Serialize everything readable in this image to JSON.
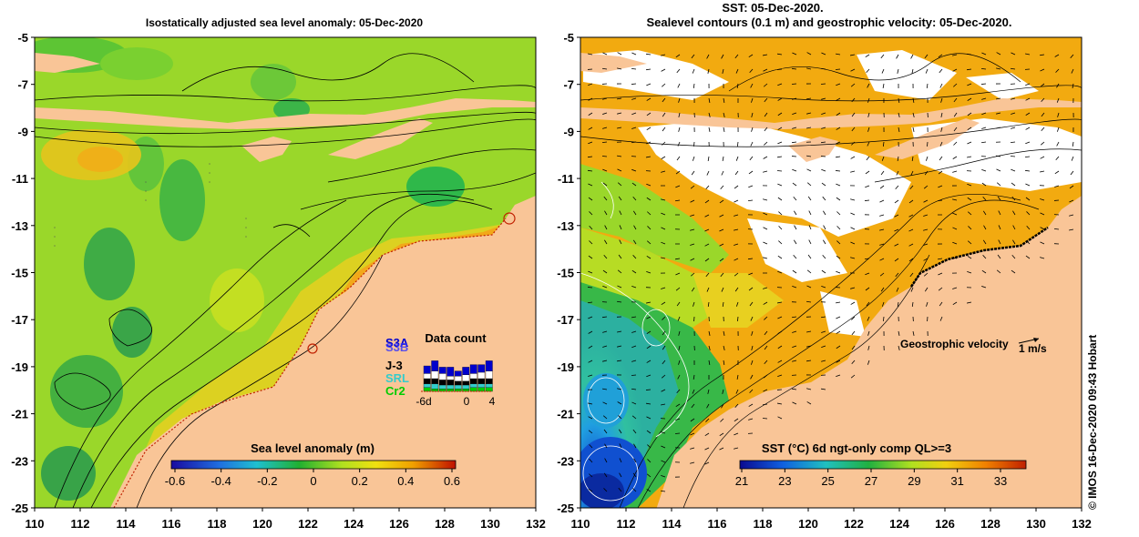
{
  "left_panel": {
    "title": "Isostatically adjusted sea level anomaly: 05-Dec-2020",
    "colorbar_label": "Sea level anomaly (m)",
    "colorbar_ticks": [
      "-0.6",
      "-0.4",
      "-0.2",
      "0",
      "0.2",
      "0.4",
      "0.6"
    ],
    "data_count": {
      "title": "Data count",
      "satellites": [
        "S3A",
        "S3B",
        "J-3",
        "SRL",
        "Cr2"
      ],
      "satellite_colors": [
        "#0000cc",
        "#3333ff",
        "#000000",
        "#33cccc",
        "#00cc00"
      ],
      "x_ticks": [
        "-6d",
        "0",
        "4"
      ]
    }
  },
  "right_panel": {
    "title_line1": "SST: 05-Dec-2020.",
    "title_line2": "Sealevel contours (0.1 m) and geostrophic velocity: 05-Dec-2020.",
    "colorbar_label": "SST (°C) 6d ngt-only comp QL>=3",
    "colorbar_ticks": [
      "21",
      "23",
      "25",
      "27",
      "29",
      "31",
      "33"
    ],
    "velocity_label": "Geostrophic velocity",
    "velocity_scale": "1 m/s"
  },
  "axes": {
    "x_ticks": [
      "110",
      "112",
      "114",
      "116",
      "118",
      "120",
      "122",
      "124",
      "126",
      "128",
      "130",
      "132"
    ],
    "y_ticks": [
      "-5",
      "-7",
      "-9",
      "-11",
      "-13",
      "-15",
      "-17",
      "-19",
      "-21",
      "-23",
      "-25"
    ]
  },
  "credit": "© IMOS 16-Dec-2020 09:43 Hobart",
  "colors": {
    "land": "#f9c597",
    "sla_base": "#9ad72a",
    "sst_base": "#f2aa10"
  }
}
